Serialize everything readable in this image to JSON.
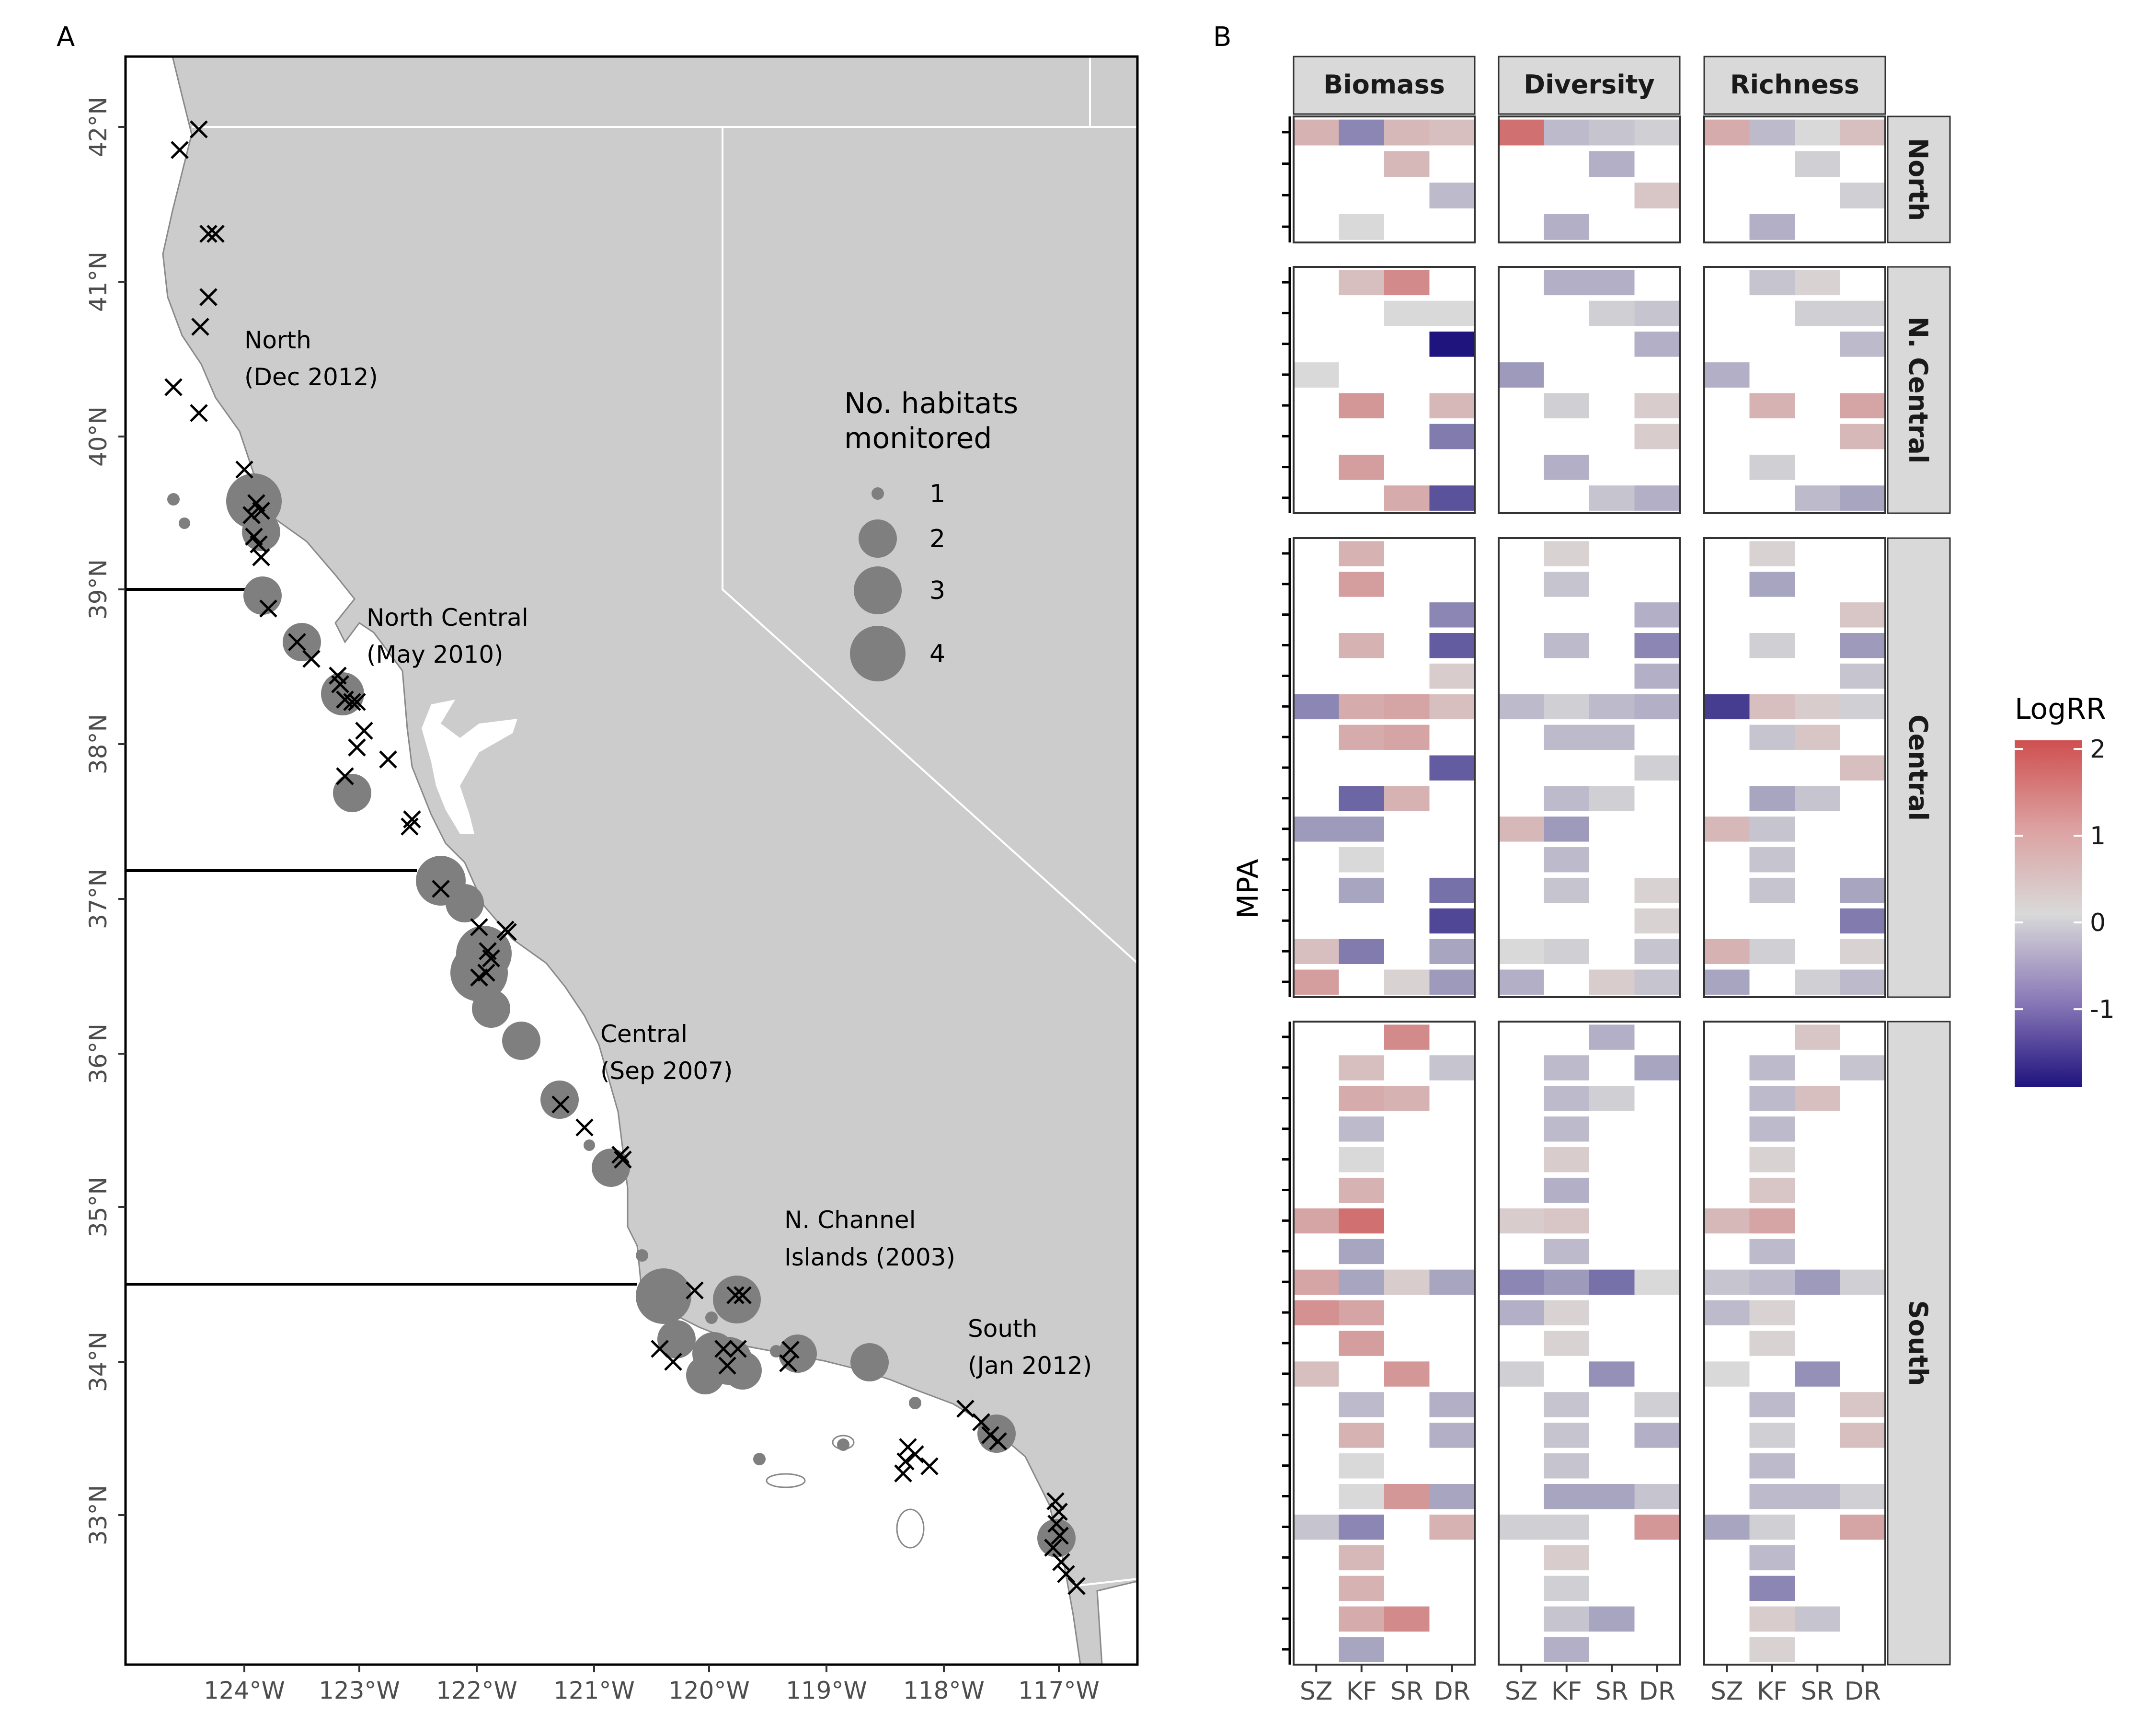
{
  "panels": {
    "a": "A",
    "b": "B"
  },
  "map": {
    "lat_ticks": [
      "42°N",
      "41°N",
      "40°N",
      "39°N",
      "38°N",
      "37°N",
      "36°N",
      "35°N",
      "34°N",
      "33°N"
    ],
    "lon_ticks": [
      "124°W",
      "123°W",
      "122°W",
      "121°W",
      "120°W",
      "119°W",
      "118°W",
      "117°W"
    ],
    "region_labels": [
      {
        "name": "North",
        "date": "(Dec 2012)"
      },
      {
        "name": "North Central",
        "date": "(May 2010)"
      },
      {
        "name": "Central",
        "date": "(Sep 2007)"
      },
      {
        "name": "N. Channel",
        "date": "Islands (2003)"
      },
      {
        "name": "South",
        "date": "(Jan 2012)"
      }
    ],
    "legend_title_1": "No. habitats",
    "legend_title_2": "monitored",
    "legend_sizes": [
      "1",
      "2",
      "3",
      "4"
    ],
    "colors": {
      "land": "#cccccc",
      "circle": "#7f7f7f",
      "marker": "#000000"
    }
  },
  "chart_data": {
    "type": "heatmap",
    "xlabel": "",
    "ylabel": "MPA",
    "columns": [
      "Biomass",
      "Diversity",
      "Richness"
    ],
    "rows": [
      "North",
      "N. Central",
      "Central",
      "South"
    ],
    "x_categories": [
      "SZ",
      "KF",
      "SR",
      "DR"
    ],
    "legend_title": "LogRR",
    "legend_ticks": [
      "2",
      "1",
      "0",
      "-1"
    ],
    "color_range": [
      -1.9,
      2.1
    ],
    "colors": {
      "low": "#1f137e",
      "mid": "#d9d9d9",
      "high": "#cf4f4f"
    },
    "grid": {
      "Biomass": {
        "North": [
          [
            0.6,
            -0.8,
            0.5,
            0.4
          ],
          [
            null,
            null,
            0.5,
            null
          ],
          [
            null,
            null,
            null,
            -0.3
          ],
          [
            null,
            0,
            null,
            null
          ]
        ],
        "N. Central": [
          [
            null,
            0.4,
            1.2,
            null
          ],
          [
            null,
            null,
            0,
            0
          ],
          [
            null,
            null,
            null,
            -1.9
          ],
          [
            0,
            null,
            null,
            null
          ],
          [
            null,
            1.0,
            null,
            0.5
          ],
          [
            null,
            null,
            null,
            -0.9
          ],
          [
            null,
            0.9,
            null,
            null
          ],
          [
            null,
            null,
            0.7,
            -1.3
          ]
        ],
        "Central": [
          [
            null,
            0.6,
            null,
            null
          ],
          [
            null,
            0.9,
            null,
            null
          ],
          [
            null,
            null,
            null,
            -0.8
          ],
          [
            null,
            0.6,
            null,
            -1.2
          ],
          [
            null,
            null,
            null,
            0.2
          ],
          [
            -0.8,
            0.7,
            0.8,
            0.4
          ],
          [
            null,
            0.7,
            0.8,
            null
          ],
          [
            null,
            null,
            null,
            -1.2
          ],
          [
            null,
            -1.1,
            0.6,
            null
          ],
          [
            -0.6,
            -0.6,
            null,
            null
          ],
          [
            null,
            0,
            null,
            null
          ],
          [
            null,
            -0.5,
            null,
            -1.0
          ],
          [
            null,
            null,
            null,
            -1.4
          ],
          [
            0.4,
            -0.9,
            null,
            -0.5
          ],
          [
            0.9,
            null,
            0.1,
            -0.6
          ]
        ],
        "South": [
          [
            null,
            null,
            1.2,
            null
          ],
          [
            null,
            0.4,
            null,
            -0.2
          ],
          [
            null,
            0.7,
            0.6,
            null
          ],
          [
            null,
            -0.3,
            null,
            null
          ],
          [
            null,
            0,
            null,
            null
          ],
          [
            null,
            0.6,
            null,
            null
          ],
          [
            0.8,
            1.6,
            null,
            null
          ],
          [
            null,
            -0.5,
            null,
            null
          ],
          [
            0.8,
            -0.5,
            0.2,
            -0.5
          ],
          [
            1.1,
            0.8,
            null,
            null
          ],
          [
            null,
            0.9,
            null,
            null
          ],
          [
            0.4,
            null,
            1.0,
            null
          ],
          [
            null,
            -0.3,
            null,
            -0.4
          ],
          [
            null,
            0.6,
            null,
            -0.4
          ],
          [
            null,
            0,
            null,
            null
          ],
          [
            null,
            0,
            1.0,
            -0.5
          ],
          [
            -0.2,
            -0.8,
            null,
            0.6
          ],
          [
            null,
            0.5,
            null,
            null
          ],
          [
            null,
            0.6,
            null,
            null
          ],
          [
            null,
            0.7,
            1.2,
            null
          ],
          [
            null,
            -0.5,
            null,
            null
          ]
        ]
      },
      "Diversity": {
        "North": [
          [
            1.6,
            -0.3,
            -0.2,
            -0.1
          ],
          [
            null,
            null,
            -0.4,
            null
          ],
          [
            null,
            null,
            null,
            0.3
          ],
          [
            null,
            -0.4,
            null,
            null
          ]
        ],
        "N. Central": [
          [
            null,
            -0.4,
            -0.4,
            null
          ],
          [
            null,
            null,
            -0.1,
            -0.2
          ],
          [
            null,
            null,
            null,
            -0.4
          ],
          [
            -0.6,
            null,
            null,
            null
          ],
          [
            null,
            -0.1,
            null,
            0.2
          ],
          [
            null,
            null,
            null,
            0.2
          ],
          [
            null,
            -0.4,
            null,
            null
          ],
          [
            null,
            null,
            -0.2,
            -0.4
          ]
        ],
        "Central": [
          [
            null,
            0.1,
            null,
            null
          ],
          [
            null,
            -0.2,
            null,
            null
          ],
          [
            null,
            null,
            null,
            -0.4
          ],
          [
            null,
            -0.3,
            null,
            -0.8
          ],
          [
            null,
            null,
            null,
            -0.4
          ],
          [
            -0.3,
            -0.1,
            -0.3,
            -0.4
          ],
          [
            null,
            -0.3,
            -0.3,
            null
          ],
          [
            null,
            null,
            null,
            -0.1
          ],
          [
            null,
            -0.3,
            -0.1,
            null
          ],
          [
            0.5,
            -0.6,
            null,
            null
          ],
          [
            null,
            -0.3,
            null,
            null
          ],
          [
            null,
            -0.2,
            null,
            0.1
          ],
          [
            null,
            null,
            null,
            0.1
          ],
          [
            0,
            -0.1,
            null,
            -0.2
          ],
          [
            -0.4,
            null,
            0.2,
            -0.2
          ]
        ],
        "South": [
          [
            null,
            null,
            -0.4,
            null
          ],
          [
            null,
            -0.3,
            null,
            -0.5
          ],
          [
            null,
            -0.3,
            -0.1,
            null
          ],
          [
            null,
            -0.3,
            null,
            null
          ],
          [
            null,
            0.2,
            null,
            null
          ],
          [
            null,
            -0.4,
            null,
            null
          ],
          [
            0.2,
            0.3,
            null,
            null
          ],
          [
            null,
            -0.3,
            null,
            null
          ],
          [
            -0.8,
            -0.6,
            -1.0,
            0
          ],
          [
            -0.4,
            0.1,
            null,
            null
          ],
          [
            null,
            0.1,
            null,
            null
          ],
          [
            -0.1,
            null,
            -0.7,
            null
          ],
          [
            null,
            -0.2,
            null,
            -0.1
          ],
          [
            null,
            -0.2,
            null,
            -0.4
          ],
          [
            null,
            -0.2,
            null,
            null
          ],
          [
            null,
            -0.5,
            -0.5,
            -0.2
          ],
          [
            -0.1,
            -0.1,
            null,
            1.0
          ],
          [
            null,
            0.2,
            null,
            null
          ],
          [
            null,
            -0.1,
            null,
            null
          ],
          [
            null,
            -0.2,
            -0.5,
            null
          ],
          [
            null,
            -0.4,
            null,
            null
          ]
        ]
      },
      "Richness": {
        "North": [
          [
            0.7,
            -0.3,
            0,
            0.4
          ],
          [
            null,
            null,
            -0.1,
            null
          ],
          [
            null,
            null,
            null,
            -0.1
          ],
          [
            null,
            -0.4,
            null,
            null
          ]
        ],
        "N. Central": [
          [
            null,
            -0.2,
            0.1,
            null
          ],
          [
            null,
            null,
            -0.1,
            -0.1
          ],
          [
            null,
            null,
            null,
            -0.3
          ],
          [
            -0.4,
            null,
            null,
            null
          ],
          [
            null,
            0.6,
            null,
            0.8
          ],
          [
            null,
            null,
            null,
            0.5
          ],
          [
            null,
            -0.1,
            null,
            null
          ],
          [
            null,
            null,
            -0.3,
            -0.5
          ]
        ],
        "Central": [
          [
            null,
            0.1,
            null,
            null
          ],
          [
            null,
            -0.5,
            null,
            null
          ],
          [
            null,
            null,
            null,
            0.3
          ],
          [
            null,
            -0.1,
            null,
            -0.6
          ],
          [
            null,
            null,
            null,
            -0.2
          ],
          [
            -1.5,
            0.4,
            0.2,
            -0.1
          ],
          [
            null,
            -0.2,
            0.3,
            null
          ],
          [
            null,
            null,
            null,
            0.4
          ],
          [
            null,
            -0.5,
            -0.2,
            null
          ],
          [
            0.5,
            -0.2,
            null,
            null
          ],
          [
            null,
            -0.2,
            null,
            null
          ],
          [
            null,
            -0.2,
            null,
            -0.5
          ],
          [
            null,
            null,
            null,
            -0.9
          ],
          [
            0.6,
            -0.1,
            null,
            0.1
          ],
          [
            -0.5,
            null,
            -0.1,
            -0.3
          ]
        ],
        "South": [
          [
            null,
            null,
            0.3,
            null
          ],
          [
            null,
            -0.3,
            null,
            -0.2
          ],
          [
            null,
            -0.3,
            0.4,
            null
          ],
          [
            null,
            -0.3,
            null,
            null
          ],
          [
            null,
            0.1,
            null,
            null
          ],
          [
            null,
            0.3,
            null,
            null
          ],
          [
            0.5,
            0.8,
            null,
            null
          ],
          [
            null,
            -0.3,
            null,
            null
          ],
          [
            -0.2,
            -0.3,
            -0.6,
            -0.1
          ],
          [
            -0.3,
            0.1,
            null,
            null
          ],
          [
            null,
            0.1,
            null,
            null
          ],
          [
            0,
            null,
            -0.7,
            null
          ],
          [
            null,
            -0.3,
            null,
            0.3
          ],
          [
            null,
            -0.1,
            null,
            0.4
          ],
          [
            null,
            -0.3,
            null,
            null
          ],
          [
            null,
            -0.3,
            -0.3,
            -0.1
          ],
          [
            -0.5,
            -0.1,
            null,
            0.8
          ],
          [
            null,
            -0.3,
            null,
            null
          ],
          [
            null,
            -0.8,
            null,
            null
          ],
          [
            null,
            0.2,
            -0.2,
            null
          ],
          [
            null,
            0.1,
            null,
            null
          ]
        ]
      }
    }
  }
}
